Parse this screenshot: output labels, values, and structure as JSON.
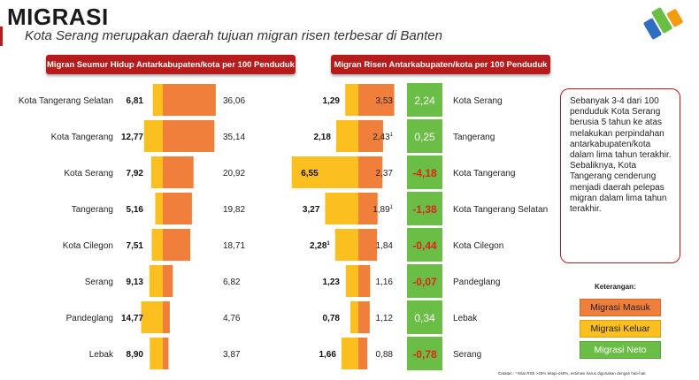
{
  "header": {
    "title": "MIGRASI",
    "subtitle": "Kota Serang merupakan daerah tujuan migran risen terbesar di Banten"
  },
  "logo": {
    "icon": "bps-logo-icon",
    "colors": [
      "#2f6fbf",
      "#6abd45",
      "#f39c12"
    ]
  },
  "colors": {
    "masuk": "#ef7f3a",
    "keluar": "#fbbf1f",
    "neto_positive": "#6abd45",
    "neto_negative": "#d8403a",
    "header": "#b71c1c"
  },
  "chart_data": [
    {
      "type": "bar",
      "title": "Migran Seumur Hidup Antarkabupaten/kota per 100 Penduduk",
      "categories": [
        "Kota Tangerang Selatan",
        "Kota Tangerang",
        "Kota Serang",
        "Tangerang",
        "Kota Cilegon",
        "Serang",
        "Pandeglang",
        "Lebak"
      ],
      "series": [
        {
          "name": "Migrasi Keluar",
          "values": [
            6.81,
            12.77,
            7.92,
            5.16,
            7.51,
            9.13,
            14.77,
            8.9
          ],
          "labels": [
            "6,81",
            "12,77",
            "7,92",
            "5,16",
            "7,51",
            "9,13",
            "14,77",
            "8,90"
          ]
        },
        {
          "name": "Migrasi Masuk",
          "values": [
            36.06,
            35.14,
            20.92,
            19.82,
            18.71,
            6.82,
            4.76,
            3.87
          ],
          "labels": [
            "36,06",
            "35,14",
            "20,92",
            "19,82",
            "18,71",
            "6,82",
            "4,76",
            "3,87"
          ]
        }
      ]
    },
    {
      "type": "bar",
      "title": "Migran Risen Antarkabupaten/kota per 100 Penduduk",
      "categories": [
        "Kota Serang",
        "Tangerang",
        "Kota Tangerang",
        "Kota Tangerang Selatan",
        "Kota Cilegon",
        "Pandeglang",
        "Lebak",
        "Serang"
      ],
      "series": [
        {
          "name": "Migrasi Keluar",
          "values": [
            1.29,
            2.18,
            6.55,
            3.27,
            2.28,
            1.23,
            0.78,
            1.66
          ],
          "labels": [
            "1,29",
            "2,18",
            "6,55",
            "3,27",
            "2,28",
            "1,23",
            "0,78",
            "1,66"
          ],
          "marks": [
            false,
            false,
            false,
            false,
            true,
            false,
            false,
            false
          ]
        },
        {
          "name": "Migrasi Masuk",
          "values": [
            3.53,
            2.43,
            2.37,
            1.89,
            1.84,
            1.16,
            1.12,
            0.88
          ],
          "labels": [
            "3,53",
            "2,43",
            "2,37",
            "1,89",
            "1,84",
            "1,16",
            "1,12",
            "0,88"
          ],
          "marks": [
            false,
            true,
            false,
            true,
            false,
            false,
            false,
            false
          ]
        },
        {
          "name": "Migrasi Neto",
          "values": [
            2.24,
            0.25,
            -4.18,
            -1.38,
            -0.44,
            -0.07,
            0.34,
            -0.78
          ],
          "labels": [
            "2,24",
            "0,25",
            "-4,18",
            "-1,38",
            "-0,44",
            "-0,07",
            "0,34",
            "-0,78"
          ]
        }
      ]
    }
  ],
  "note": {
    "p1": "Sebanyak 3-4 dari 100 penduduk Kota Serang berusia 5 tahun ke atas melakukan perpindahan antarkabupaten/kota dalam lima tahun terakhir.",
    "p2": "Sebaliknya, Kota Tangerang cenderung menjadi daerah pelepas migran dalam lima tahun terakhir."
  },
  "legend": {
    "title": "Keterangan:",
    "masuk": "Migrasi Masuk",
    "keluar": "Migrasi Keluar",
    "neto": "Migrasi Neto"
  },
  "footnote": "Catatan : ¹ Nilai RSE >25% tetapi ≤50%, estimasi harus digunakan dengan hati-hati",
  "sup_mark": "1"
}
